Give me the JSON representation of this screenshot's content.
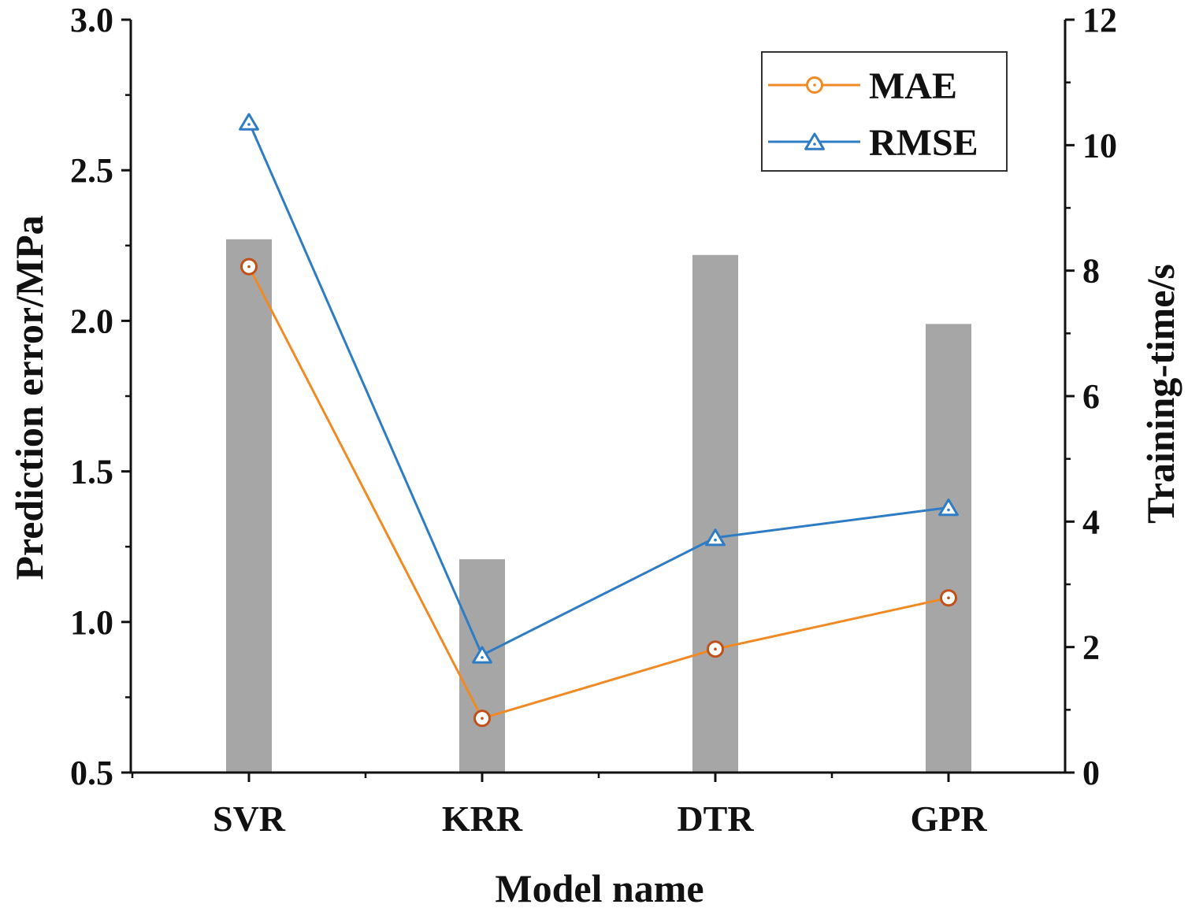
{
  "chart_data": {
    "type": "bar+line",
    "categories": [
      "SVR",
      "KRR",
      "DTR",
      "GPR"
    ],
    "xlabel": "Model name",
    "ylabel_left": "Prediction error/MPa",
    "ylabel_right": "Training-time/s",
    "ylim_left": [
      0.5,
      3.0
    ],
    "yticks_left": [
      "0.5",
      "1.0",
      "1.5",
      "2.0",
      "2.5",
      "3.0"
    ],
    "ylim_right": [
      0,
      12
    ],
    "yticks_right": [
      "0",
      "2",
      "4",
      "6",
      "8",
      "10",
      "12"
    ],
    "bars": {
      "name": "Training-time",
      "axis": "right",
      "color": "#a6a6a6",
      "values": [
        8.5,
        3.4,
        8.25,
        7.15
      ]
    },
    "series": [
      {
        "name": "MAE",
        "axis": "left",
        "marker": "circle",
        "color": "#f08a24",
        "marker_color": "#c0501a",
        "values": [
          2.18,
          0.68,
          0.91,
          1.08
        ]
      },
      {
        "name": "RMSE",
        "axis": "left",
        "marker": "triangle",
        "color": "#2e7cc4",
        "marker_color": "#2e7cc4",
        "values": [
          2.66,
          0.89,
          1.28,
          1.38
        ]
      }
    ],
    "legend": {
      "position": "top-right",
      "entries": [
        "MAE",
        "RMSE"
      ]
    }
  }
}
